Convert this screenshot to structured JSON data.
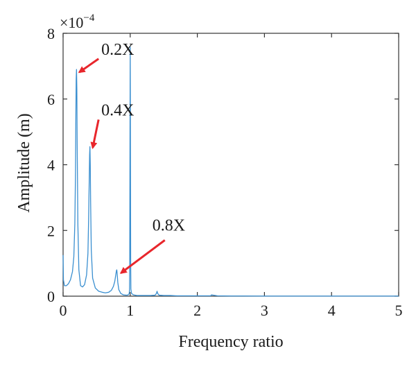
{
  "chart_data": {
    "type": "line",
    "title": "",
    "xlabel": "Frequency ratio",
    "ylabel": "Amplitude (m)",
    "xlim": [
      0,
      5
    ],
    "ylim": [
      0,
      8
    ],
    "y_multiplier": "×10",
    "y_exponent": "−4",
    "grid": false,
    "x_ticks": [
      0,
      1,
      2,
      3,
      4,
      5
    ],
    "y_ticks": [
      0,
      2,
      4,
      6,
      8
    ],
    "line_color": "#3a8fd0",
    "arrow_color": "#e8262c",
    "series": [
      {
        "color": "#3a8fd0",
        "x": [
          0,
          0.005,
          0.02,
          0.05,
          0.08,
          0.11,
          0.14,
          0.16,
          0.175,
          0.185,
          0.19,
          0.195,
          0.2,
          0.205,
          0.21,
          0.22,
          0.235,
          0.26,
          0.29,
          0.32,
          0.35,
          0.37,
          0.38,
          0.39,
          0.395,
          0.4,
          0.405,
          0.41,
          0.42,
          0.44,
          0.48,
          0.53,
          0.58,
          0.63,
          0.68,
          0.72,
          0.75,
          0.77,
          0.785,
          0.795,
          0.8,
          0.805,
          0.815,
          0.83,
          0.86,
          0.9,
          0.94,
          0.97,
          0.985,
          0.99,
          0.993,
          0.997,
          1.0,
          1.003,
          1.007,
          1.01,
          1.02,
          1.05,
          1.1,
          1.2,
          1.3,
          1.37,
          1.39,
          1.4,
          1.41,
          1.43,
          1.5,
          1.6,
          1.7,
          1.8,
          2.0,
          2.2,
          2.21,
          2.3,
          2.5,
          2.7,
          3.0,
          3.5,
          4.0,
          4.5,
          5.0
        ],
        "y": [
          1.25,
          0.5,
          0.32,
          0.32,
          0.38,
          0.5,
          0.75,
          1.2,
          2.2,
          3.8,
          5.4,
          6.6,
          6.9,
          6.3,
          4.6,
          2.2,
          0.8,
          0.32,
          0.28,
          0.35,
          0.65,
          1.3,
          2.3,
          3.6,
          4.3,
          4.55,
          4.0,
          2.9,
          1.4,
          0.55,
          0.25,
          0.15,
          0.12,
          0.1,
          0.12,
          0.18,
          0.3,
          0.45,
          0.65,
          0.78,
          0.8,
          0.7,
          0.42,
          0.2,
          0.08,
          0.04,
          0.03,
          0.04,
          0.08,
          0.2,
          1.0,
          5.0,
          7.58,
          5.0,
          1.0,
          0.22,
          0.08,
          0.04,
          0.02,
          0.02,
          0.02,
          0.03,
          0.08,
          0.15,
          0.08,
          0.03,
          0.02,
          0.02,
          0.01,
          0.01,
          0.01,
          0.01,
          0.04,
          0.01,
          0.005,
          0.005,
          0.003,
          0.003,
          0.002,
          0.002,
          0.002
        ]
      }
    ],
    "annotations": [
      {
        "text": "0.2X",
        "x": 0.2,
        "y": 6.9,
        "text_x": 0.57,
        "text_y": 7.35
      },
      {
        "text": "0.4X",
        "x": 0.4,
        "y": 4.6,
        "text_x": 0.57,
        "text_y": 5.5
      },
      {
        "text": "0.8X",
        "x": 0.8,
        "y": 0.62,
        "text_x": 1.33,
        "text_y": 2.0
      }
    ]
  }
}
